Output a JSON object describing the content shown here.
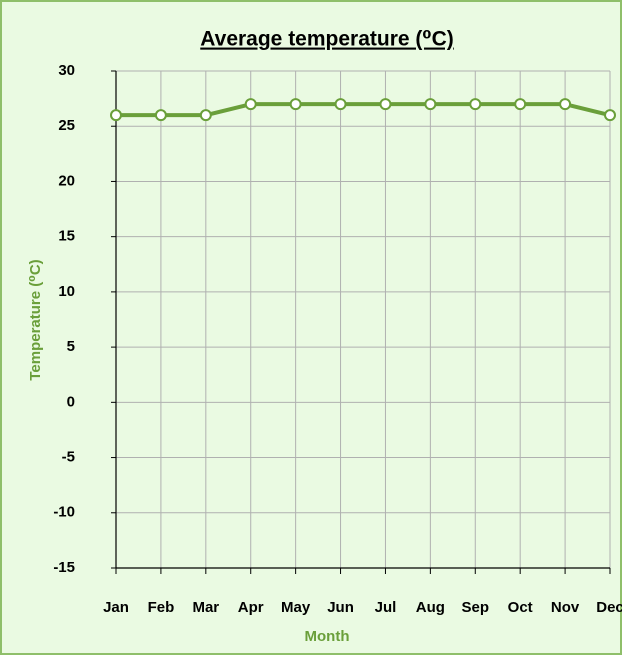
{
  "chart_data": {
    "type": "line",
    "title": "Average temperature (⁰C)",
    "x_label": "Month",
    "y_label": "Temperature (⁰C)",
    "categories": [
      "Jan",
      "Feb",
      "Mar",
      "Apr",
      "May",
      "Jun",
      "Jul",
      "Aug",
      "Sep",
      "Oct",
      "Nov",
      "Dec"
    ],
    "values": [
      26,
      26,
      26,
      27,
      27,
      27,
      27,
      27,
      27,
      27,
      27,
      26
    ],
    "color": "#6a9f3a",
    "ylim": [
      -15,
      30
    ],
    "yticks": [
      -15,
      -10,
      -5,
      0,
      5,
      10,
      15,
      20,
      25,
      30
    ],
    "grid": true
  }
}
